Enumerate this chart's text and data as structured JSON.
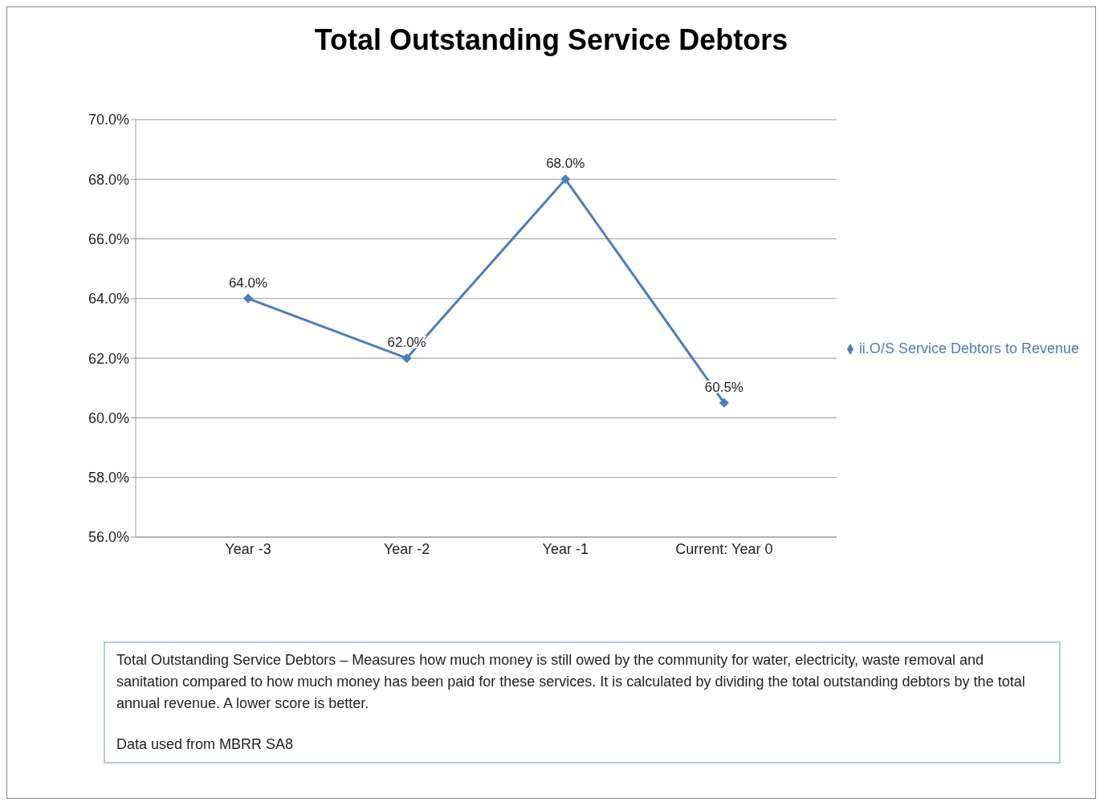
{
  "chart_data": {
    "type": "line",
    "title": "Total Outstanding Service Debtors",
    "categories": [
      "Year -3",
      "Year -2",
      "Year -1",
      "Current: Year 0"
    ],
    "series": [
      {
        "name": "ii.O/S Service Debtors to Revenue",
        "color": "#4a7ebb",
        "values": [
          64.0,
          62.0,
          68.0,
          60.5
        ],
        "value_labels": [
          "64.0%",
          "62.0%",
          "68.0%",
          "60.5%"
        ]
      }
    ],
    "ylim": [
      56,
      70
    ],
    "yticks": [
      {
        "value": 56,
        "label": "56.0%"
      },
      {
        "value": 58,
        "label": "58.0%"
      },
      {
        "value": 60,
        "label": "60.0%"
      },
      {
        "value": 62,
        "label": "62.0%"
      },
      {
        "value": 64,
        "label": "64.0%"
      },
      {
        "value": 66,
        "label": "66.0%"
      },
      {
        "value": 68,
        "label": "68.0%"
      },
      {
        "value": 70,
        "label": "70.0%"
      }
    ],
    "grid": "y",
    "legend": "right",
    "marker": "diamond",
    "line_style": "solid",
    "annotations": [
      "Total Outstanding  Service Debtors – Measures how much money is still owed by the community for water, electricity,  waste removal and sanitation compared  to how much money has been paid for these services. It is calculated  by dividing  the total outstanding  debtors by the total annual revenue.  A lower score is better.",
      "Data used from MBRR SA8"
    ]
  }
}
